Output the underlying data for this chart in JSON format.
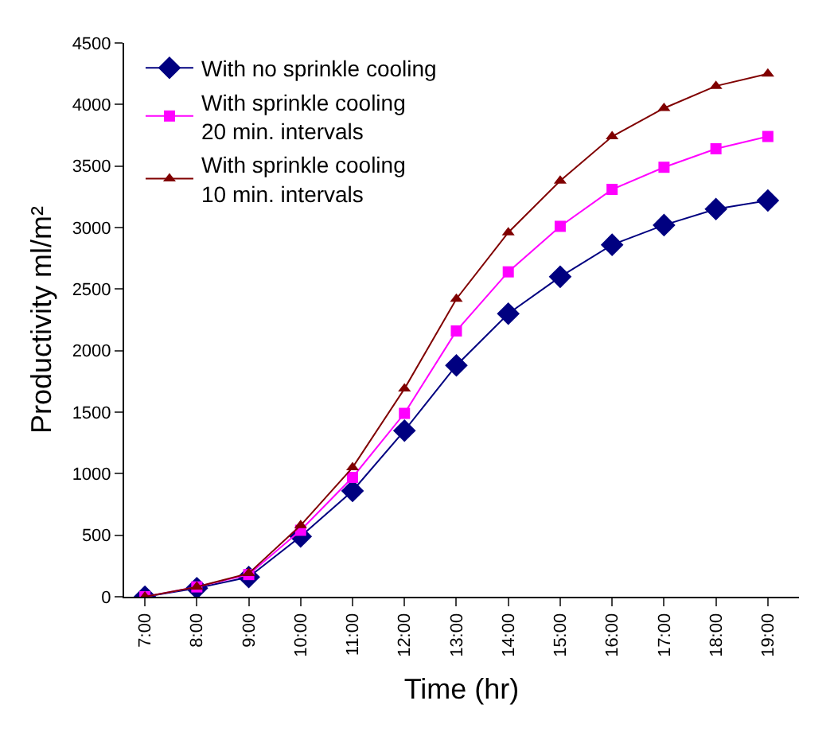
{
  "chart_data": {
    "type": "line",
    "xlabel": "Time (hr)",
    "ylabel": "Productivity ml/m²",
    "categories": [
      "7:00",
      "8:00",
      "9:00",
      "10:00",
      "11:00",
      "12:00",
      "13:00",
      "14:00",
      "15:00",
      "16:00",
      "17:00",
      "18:00",
      "19:00"
    ],
    "series": [
      {
        "name": "With no sprinkle cooling",
        "color": "#000080",
        "marker": "diamond",
        "values": [
          0,
          70,
          160,
          490,
          860,
          1350,
          1880,
          2300,
          2600,
          2860,
          3020,
          3150,
          3220
        ]
      },
      {
        "name": "With sprinkle cooling\n20 min. intervals",
        "color": "#ff00ff",
        "marker": "square",
        "values": [
          0,
          80,
          180,
          540,
          970,
          1490,
          2160,
          2640,
          3010,
          3310,
          3490,
          3640,
          3740
        ]
      },
      {
        "name": "With sprinkle cooling\n10 min. intervals",
        "color": "#800000",
        "marker": "triangle",
        "values": [
          0,
          80,
          190,
          580,
          1050,
          1690,
          2420,
          2960,
          3380,
          3740,
          3970,
          4150,
          4250
        ]
      }
    ],
    "ylim": [
      0,
      4500
    ],
    "yticks": [
      0,
      500,
      1000,
      1500,
      2000,
      2500,
      3000,
      3500,
      4000,
      4500
    ],
    "grid": false,
    "legend": "top left",
    "line_style": "solid"
  }
}
